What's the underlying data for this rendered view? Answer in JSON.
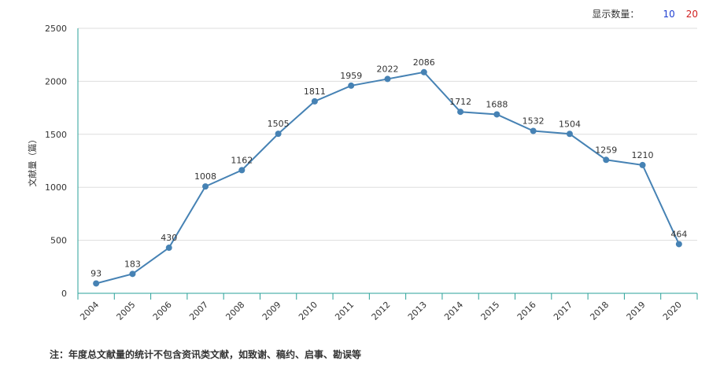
{
  "header": {
    "display_count_label": "显示数量：",
    "options": [
      {
        "label": "10",
        "color": "#1f3fd1"
      },
      {
        "label": "20",
        "color": "#d11f1f"
      }
    ]
  },
  "chart_data": {
    "type": "line",
    "x": [
      "2004",
      "2005",
      "2006",
      "2007",
      "2008",
      "2009",
      "2010",
      "2011",
      "2012",
      "2013",
      "2014",
      "2015",
      "2016",
      "2017",
      "2018",
      "2019",
      "2020"
    ],
    "series": [
      {
        "values": [
          93,
          183,
          430,
          1008,
          1162,
          1505,
          1811,
          1959,
          2022,
          2086,
          1712,
          1688,
          1532,
          1504,
          1259,
          1210,
          464
        ]
      }
    ],
    "ylabel": "文献量（篇）",
    "ylim": [
      0,
      2500
    ],
    "yticks": [
      0,
      500,
      1000,
      1500,
      2000,
      2500
    ],
    "grid": true,
    "line_color": "#4682b4",
    "axis_color": "#2aa198"
  },
  "footer": {
    "note": "注：年度总文献量的统计不包含资讯类文献，如致谢、稿约、启事、勘误等"
  }
}
